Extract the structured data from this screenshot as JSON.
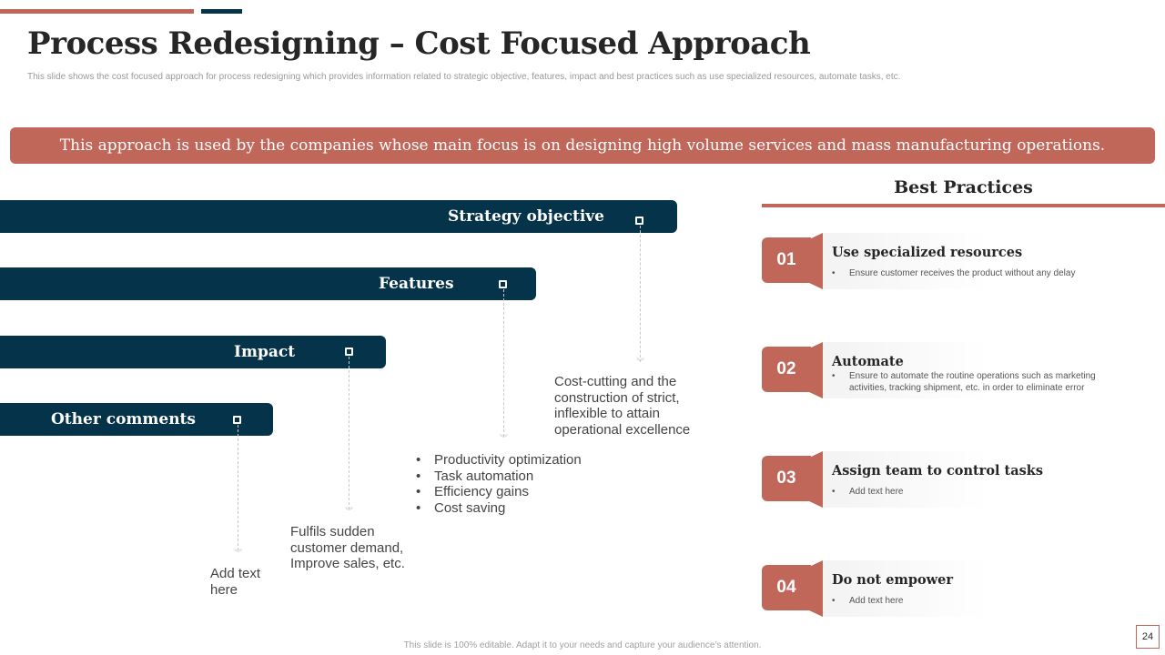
{
  "header": {
    "title": "Process Redesigning – Cost Focused Approach",
    "subtitle": "This slide shows the cost focused approach for process redesigning which provides information related to strategic objective, features, impact and best practices such as use specialized resources, automate tasks, etc."
  },
  "banner": {
    "text": "This approach is used by the companies whose main focus is on designing high volume services and mass manufacturing operations."
  },
  "bars": [
    {
      "label": "Strategy objective",
      "detail": "Cost-cutting and the construction of strict, inflexible to attain operational excellence"
    },
    {
      "label": "Features",
      "detail_bullets": [
        "Productivity optimization",
        "Task automation",
        "Efficiency gains",
        "Cost saving"
      ]
    },
    {
      "label": "Impact",
      "detail": "Fulfils sudden customer demand, Improve sales, etc."
    },
    {
      "label": "Other comments",
      "detail": "Add text here"
    }
  ],
  "best_practices": {
    "title": "Best  Practices",
    "items": [
      {
        "number": "01",
        "title": "Use specialized resources",
        "desc": "Ensure customer receives the product without any delay"
      },
      {
        "number": "02",
        "title": "Automate",
        "desc": "Ensure to automate the routine operations such as marketing activities, tracking shipment, etc. in order to eliminate error"
      },
      {
        "number": "03",
        "title": "Assign team to control tasks",
        "desc": "Add text here"
      },
      {
        "number": "04",
        "title": "Do not empower",
        "desc": "Add text here"
      }
    ]
  },
  "footer": {
    "text": "This slide is 100% editable. Adapt it to your needs and capture your audience’s attention.",
    "page_number": "24"
  },
  "colors": {
    "accent": "#c0675a",
    "dark": "#04334a"
  }
}
